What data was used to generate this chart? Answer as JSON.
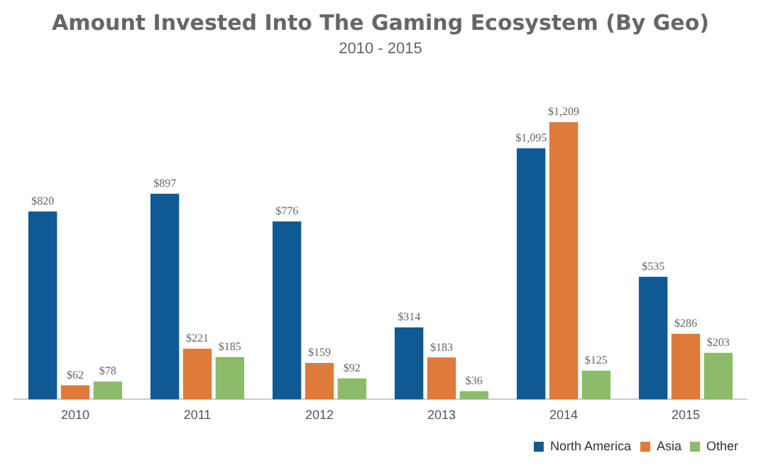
{
  "chart_data": {
    "type": "bar",
    "title": "Amount Invested Into The Gaming Ecosystem (By Geo)",
    "subtitle": "2010 - 2015",
    "categories": [
      "2010",
      "2011",
      "2012",
      "2013",
      "2014",
      "2015"
    ],
    "series": [
      {
        "name": "North America",
        "color": "#0f5a94",
        "values": [
          820,
          897,
          776,
          314,
          1095,
          535
        ],
        "value_labels": [
          "$820",
          "$897",
          "$776",
          "$314",
          "$1,095",
          "$535"
        ]
      },
      {
        "name": "Asia",
        "color": "#e07a3a",
        "values": [
          62,
          221,
          159,
          183,
          1209,
          286
        ],
        "value_labels": [
          "$62",
          "$221",
          "$159",
          "$183",
          "$1,209",
          "$286"
        ]
      },
      {
        "name": "Other",
        "color": "#8cbb6a",
        "values": [
          78,
          185,
          92,
          36,
          125,
          203
        ],
        "value_labels": [
          "$78",
          "$185",
          "$92",
          "$36",
          "$125",
          "$203"
        ]
      }
    ],
    "legend": "bottom right",
    "grid": false
  }
}
